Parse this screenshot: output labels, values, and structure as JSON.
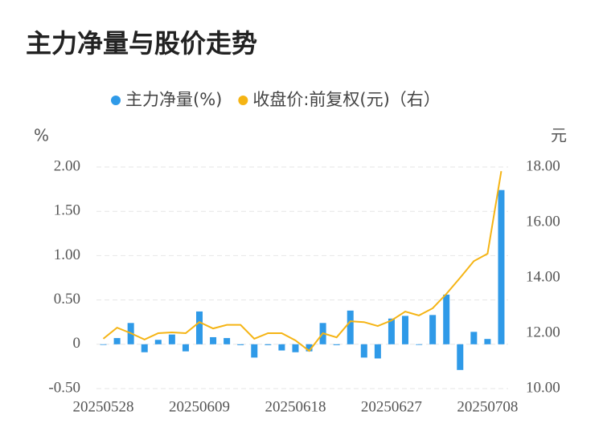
{
  "chart_data": {
    "type": "bar_line",
    "title": "主力净量与股价走势",
    "categories": [
      "20250528",
      null,
      null,
      null,
      null,
      null,
      null,
      "20250609",
      null,
      null,
      null,
      null,
      null,
      null,
      "20250618",
      null,
      null,
      null,
      null,
      null,
      null,
      "20250627",
      null,
      null,
      null,
      null,
      null,
      null,
      "20250708",
      null
    ],
    "series": [
      {
        "name": "主力净量(%)",
        "color": "#2f9ae8",
        "type": "bar",
        "values": [
          0,
          0.07,
          0.24,
          -0.09,
          0.05,
          0.11,
          -0.08,
          0.37,
          0.08,
          0.07,
          -0.01,
          -0.15,
          -0.01,
          -0.07,
          -0.09,
          -0.08,
          0.24,
          -0.01,
          0.38,
          -0.15,
          -0.16,
          0.29,
          0.32,
          0,
          0.33,
          0.56,
          -0.29,
          0.14,
          0.06,
          1.74
        ]
      },
      {
        "name": "收盘价:前复权(元)（右）",
        "color": "#f5b414",
        "type": "line",
        "axis": "y2",
        "values": [
          11.8,
          12.2,
          12.0,
          11.77,
          12.0,
          12.03,
          12.0,
          12.4,
          12.17,
          12.3,
          12.3,
          11.8,
          12.0,
          12.0,
          11.74,
          11.36,
          12.0,
          11.85,
          12.43,
          12.4,
          12.26,
          12.46,
          12.78,
          12.64,
          12.9,
          13.42,
          14.0,
          14.6,
          14.87,
          17.85
        ]
      }
    ],
    "y_label": "%",
    "y2_label": "元",
    "ylim": [
      -0.5,
      2.0
    ],
    "yticks": [
      {
        "value": -0.5,
        "label": "-0.50"
      },
      0,
      {
        "value": 0.5,
        "label": "0.50"
      },
      {
        "value": 1.0,
        "label": "1.00"
      },
      {
        "value": 1.5,
        "label": "1.50"
      },
      {
        "value": 2.0,
        "label": "2.00"
      }
    ],
    "y2lim": [
      10,
      18
    ],
    "y2ticks": [
      {
        "value": 10,
        "label": "10.00"
      },
      {
        "value": 12,
        "label": "12.00"
      },
      {
        "value": 14,
        "label": "14.00"
      },
      {
        "value": 16,
        "label": "16.00"
      },
      {
        "value": 18,
        "label": "18.00"
      }
    ],
    "grid": true
  }
}
